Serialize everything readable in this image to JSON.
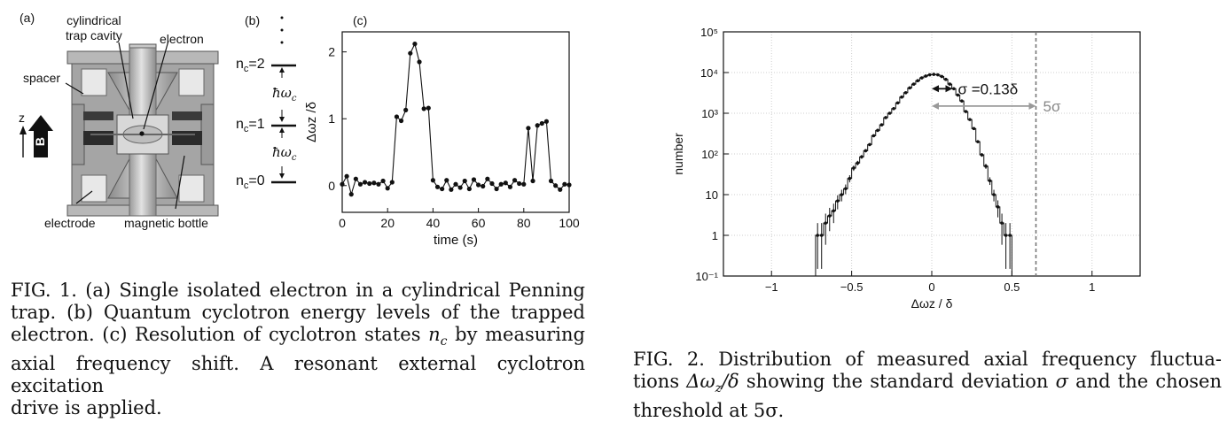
{
  "figure1": {
    "panel_a": {
      "label": "(a)",
      "annotations": {
        "cavity": [
          "cylindrical",
          "trap cavity"
        ],
        "electron": "electron",
        "spacer": "spacer",
        "electrode": "electrode",
        "bottle": "magnetic bottle",
        "z": "z",
        "b": "B"
      }
    },
    "panel_b": {
      "label": "(b)",
      "levels": [
        "n c=2",
        "n c=1",
        "n c=0"
      ],
      "level_prefix": "n",
      "level_sub": "c",
      "level_values": [
        "=2",
        "=1",
        "=0"
      ],
      "transition": "ħω",
      "transition_sub": "c"
    },
    "panel_c": {
      "label": "(c)",
      "chart_data": {
        "type": "line",
        "xlabel": "time (s)",
        "ylabel": "Δωz /δ",
        "xlim": [
          0,
          100
        ],
        "ylim": [
          -0.4,
          2.3
        ],
        "xticks": [
          "0",
          "20",
          "40",
          "60",
          "80",
          "100"
        ],
        "yticks": [
          "0",
          "1",
          "2"
        ],
        "x": [
          0,
          2,
          4,
          6,
          8,
          10,
          12,
          14,
          16,
          18,
          20,
          22,
          24,
          26,
          28,
          30,
          32,
          34,
          36,
          38,
          40,
          42,
          44,
          46,
          48,
          50,
          52,
          54,
          56,
          58,
          60,
          62,
          64,
          66,
          68,
          70,
          72,
          74,
          76,
          78,
          80,
          82,
          84,
          86,
          88,
          90,
          92,
          94,
          96,
          98,
          100
        ],
        "y": [
          0.02,
          0.14,
          -0.13,
          0.1,
          0.02,
          0.05,
          0.03,
          0.04,
          0.02,
          0.07,
          -0.04,
          0.05,
          1.03,
          0.97,
          1.13,
          1.98,
          2.12,
          1.85,
          1.15,
          1.16,
          0.08,
          -0.02,
          -0.05,
          0.08,
          -0.06,
          0.02,
          -0.03,
          0.07,
          -0.05,
          0.09,
          0.01,
          -0.01,
          0.1,
          0.03,
          -0.05,
          0.02,
          0.04,
          -0.02,
          0.08,
          0.03,
          0.02,
          0.86,
          0.07,
          0.9,
          0.93,
          0.96,
          0.07,
          0.0,
          -0.06,
          0.02,
          0.01
        ]
      }
    },
    "caption": {
      "line1": "FIG. 1.  (a) Single isolated electron in a cylindrical Penning",
      "line2": "trap.  (b) Quantum cyclotron energy levels of the trapped",
      "line3_pre": "electron.  (c) Resolution of cyclotron states ",
      "line3_var": "n",
      "line3_sub": "c",
      "line3_post": " by measuring",
      "line4": "axial frequency shift.  A resonant external cyclotron excitation",
      "line5": "drive is applied."
    }
  },
  "figure2": {
    "chart_data": {
      "type": "bar",
      "style": "step-histogram with error bars",
      "xlabel": "Δωz / δ",
      "ylabel": "number",
      "xlim": [
        -1.3,
        1.3
      ],
      "ylim_log10": [
        -1,
        5
      ],
      "log_y": true,
      "grid": true,
      "xticks": [
        "−1",
        "−0.5",
        "0",
        "0.5",
        "1"
      ],
      "yticks": [
        "10⁻¹",
        "1",
        "10",
        "10²",
        "10³",
        "10⁴",
        "10⁵"
      ],
      "bin_width": 0.025,
      "bin_centers": [
        -0.7125,
        -0.6875,
        -0.6625,
        -0.6375,
        -0.6125,
        -0.5875,
        -0.5625,
        -0.5375,
        -0.5125,
        -0.4875,
        -0.4625,
        -0.4375,
        -0.4125,
        -0.3875,
        -0.3625,
        -0.3375,
        -0.3125,
        -0.2875,
        -0.2625,
        -0.2375,
        -0.2125,
        -0.1875,
        -0.1625,
        -0.1375,
        -0.1125,
        -0.0875,
        -0.0625,
        -0.0375,
        -0.0125,
        0.0125,
        0.0375,
        0.0625,
        0.0875,
        0.1125,
        0.1375,
        0.1625,
        0.1875,
        0.2125,
        0.2375,
        0.2625,
        0.2875,
        0.3125,
        0.3375,
        0.3625,
        0.3875,
        0.4125,
        0.4375,
        0.4625,
        0.4875
      ],
      "counts": [
        1,
        1,
        2,
        3,
        4,
        7,
        10,
        14,
        25,
        45,
        60,
        85,
        120,
        170,
        280,
        380,
        520,
        780,
        1000,
        1300,
        1800,
        2500,
        3200,
        4200,
        5200,
        6300,
        7400,
        8200,
        8800,
        9000,
        8800,
        8000,
        6800,
        5200,
        4000,
        2800,
        2000,
        1100,
        700,
        420,
        200,
        95,
        50,
        22,
        10,
        5,
        2,
        1,
        1
      ],
      "annotations": {
        "sigma": "σ =0.13δ",
        "threshold": "5σ"
      },
      "sigma_value": 0.13,
      "threshold_value": 0.65
    },
    "caption": {
      "line1": "FIG. 2.  Distribution of measured axial frequency fluctua-",
      "line2_pre": "tions ",
      "line2_math": "Δω",
      "line2_sub": "z",
      "line2_math2": "/δ",
      "line2_post": " showing the standard deviation ",
      "line2_sigma": "σ",
      "line2_tail": " and the chosen",
      "line3": "threshold at 5σ."
    }
  }
}
